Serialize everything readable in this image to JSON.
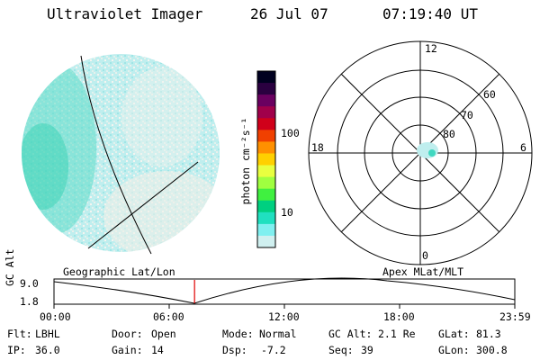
{
  "header": {
    "instrument": "Ultraviolet Imager",
    "date": "26 Jul 07",
    "time": "07:19:40 UT"
  },
  "left_panel": {
    "caption": "Geographic Lat/Lon"
  },
  "colorbar": {
    "label": "photon cm⁻²s⁻¹",
    "tick_labels": [
      "100",
      "10"
    ],
    "colors": [
      "#000020",
      "#2a0040",
      "#6a0060",
      "#a0004a",
      "#d0001a",
      "#f04000",
      "#ff9000",
      "#ffd000",
      "#e8ff40",
      "#a0ff40",
      "#40f040",
      "#00d080",
      "#20e0c0",
      "#80f0f0",
      "#d0f0f0"
    ]
  },
  "polar_plot": {
    "caption": "Apex MLat/MLT",
    "mlt_labels": [
      "12",
      "18",
      "6",
      "0"
    ],
    "lat_labels": [
      "60",
      "70",
      "80"
    ]
  },
  "altitude_strip": {
    "ylabel": "GC Alt",
    "yticks": [
      "9.0",
      "1.8"
    ],
    "xticks": [
      "00:00",
      "06:00",
      "12:00",
      "18:00",
      "23:59"
    ],
    "current_time_fraction": 0.305
  },
  "info": {
    "flt_label": "Flt:",
    "flt_value": "LBHL",
    "door_label": "Door:",
    "door_value": "Open",
    "mode_label": "Mode:",
    "mode_value": "Normal",
    "gcalt_label": "GC Alt:",
    "gcalt_value": "2.1 Re",
    "glat_label": "GLat:",
    "glat_value": "81.3",
    "ip_label": "IP:",
    "ip_value": "36.0",
    "gain_label": "Gain:",
    "gain_value": "14",
    "dsp_label": "Dsp:",
    "dsp_value": "-7.2",
    "seq_label": "Seq:",
    "seq_value": "39",
    "glon_label": "GLon:",
    "glon_value": "300.8"
  }
}
